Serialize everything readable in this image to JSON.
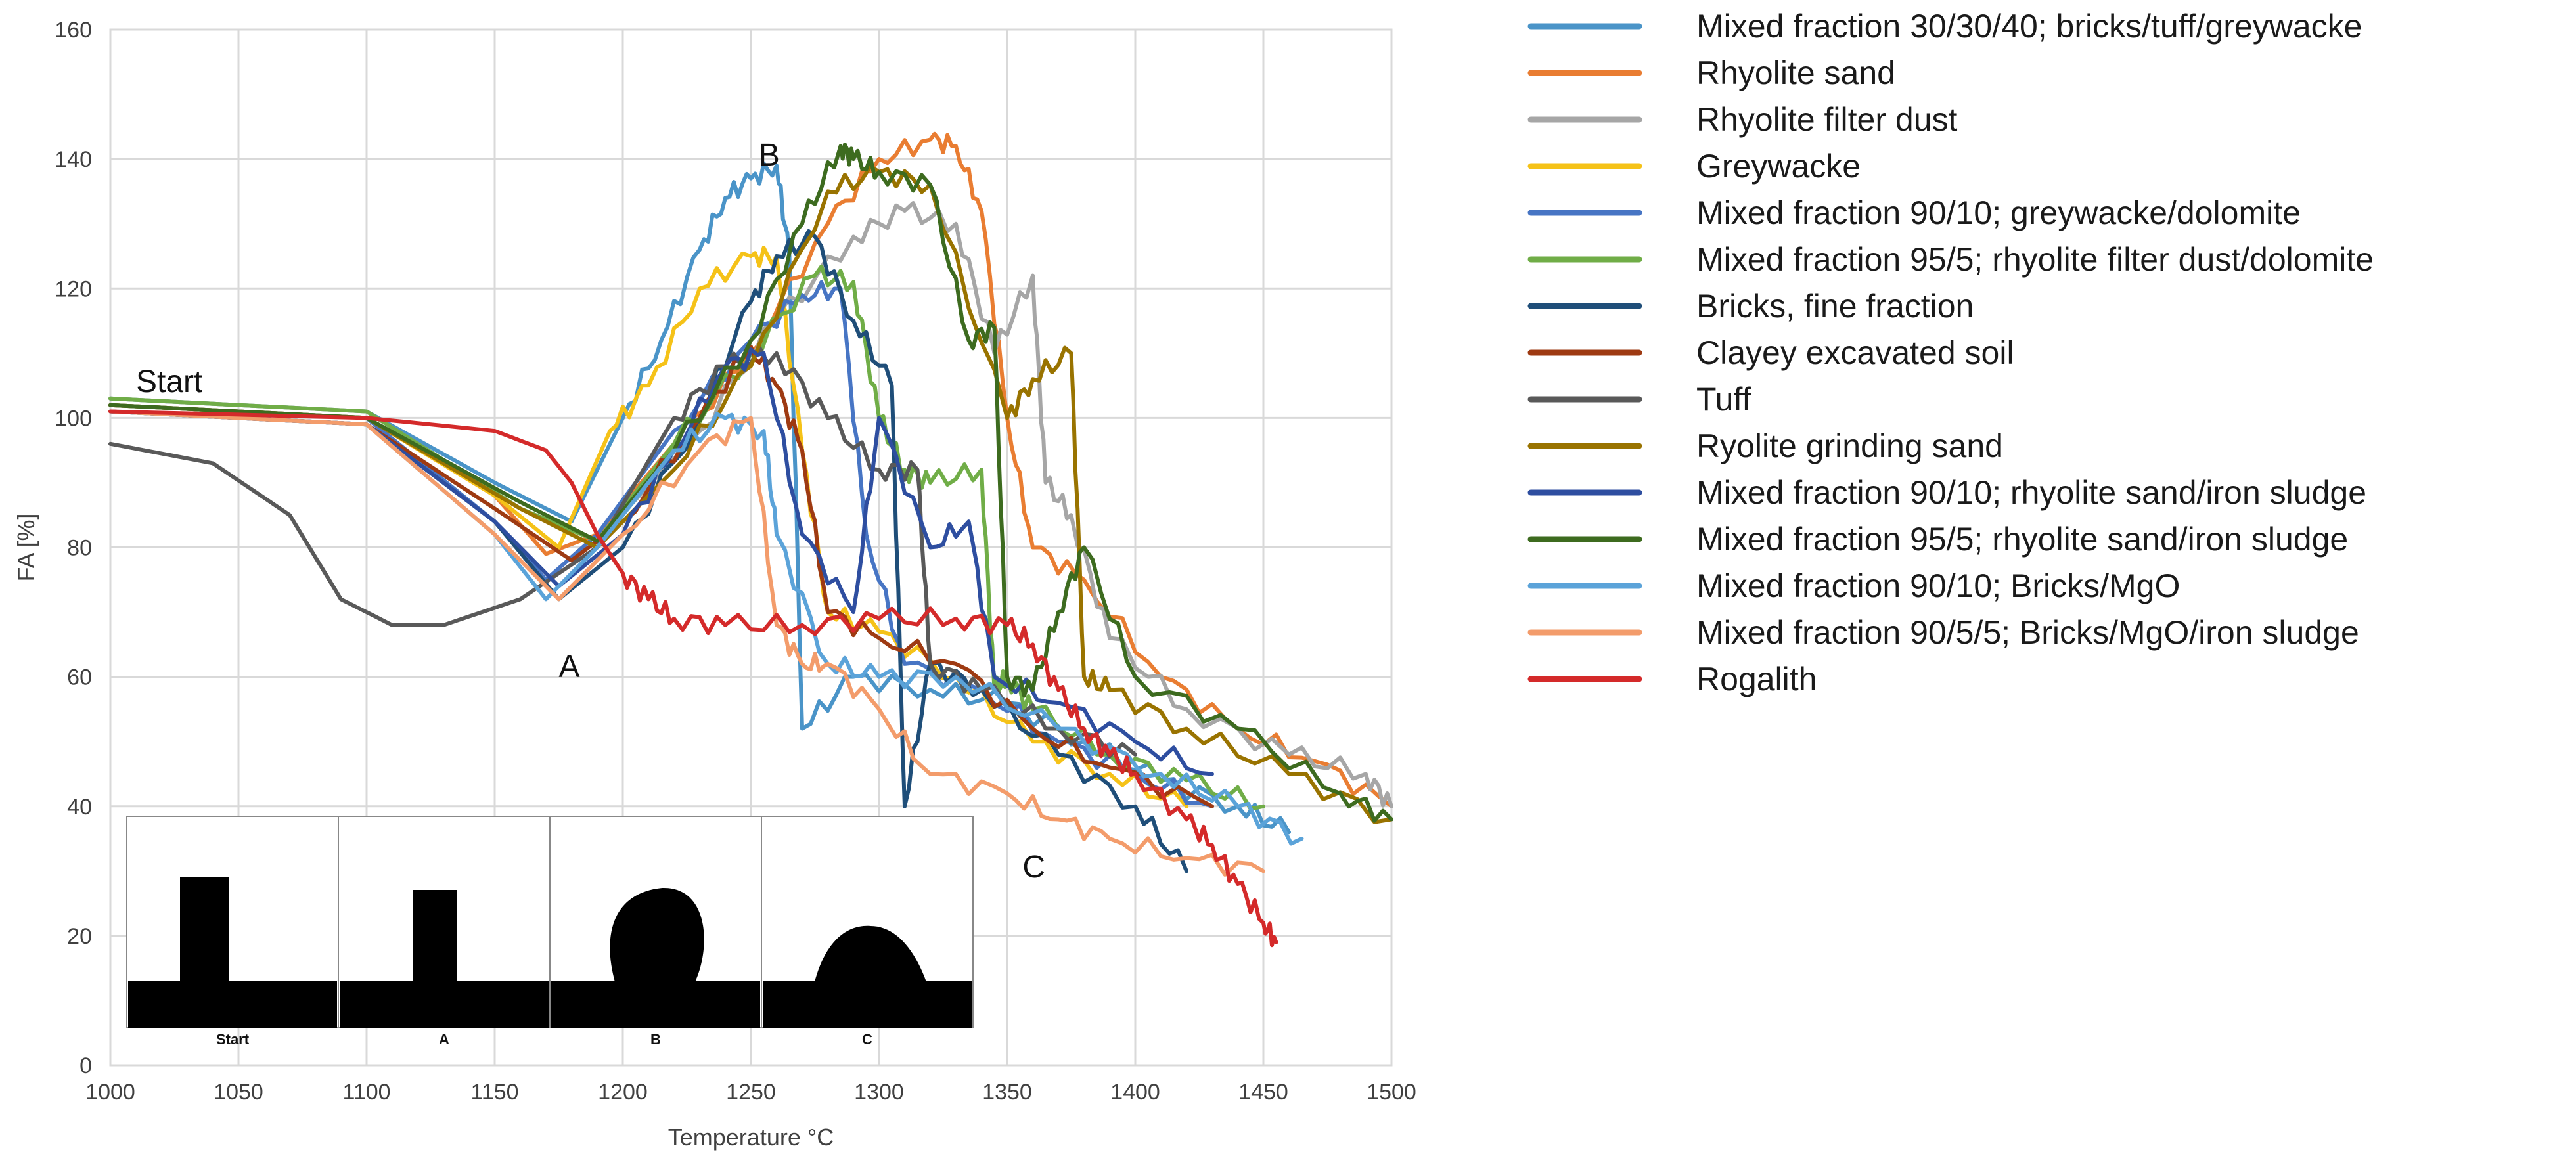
{
  "chart_data": {
    "type": "line",
    "title": "",
    "xlabel": "Temperature °C",
    "ylabel": "FA [%]",
    "xlim": [
      1000,
      1500
    ],
    "ylim": [
      0,
      160
    ],
    "xticks": [
      1000,
      1050,
      1100,
      1150,
      1200,
      1250,
      1300,
      1350,
      1400,
      1450,
      1500
    ],
    "yticks": [
      0,
      20,
      40,
      60,
      80,
      100,
      120,
      140,
      160
    ],
    "grid": true,
    "legend_position": "right",
    "annotations": [
      {
        "text": "Start",
        "x": 1010,
        "y": 104
      },
      {
        "text": "A",
        "x": 1175,
        "y": 60
      },
      {
        "text": "B",
        "x": 1253,
        "y": 139
      },
      {
        "text": "C",
        "x": 1356,
        "y": 29
      }
    ],
    "inset": {
      "labels": [
        "Start",
        "A",
        "B",
        "C"
      ]
    },
    "series": [
      {
        "name": "Mixed fraction 30/30/40; bricks/tuff/greywacke",
        "color": "#4a94c8",
        "x": [
          1000,
          1100,
          1150,
          1180,
          1200,
          1215,
          1230,
          1240,
          1250,
          1260,
          1265,
          1270,
          1290,
          1320,
          1350,
          1380,
          1410,
          1440,
          1460
        ],
        "y": [
          103,
          101,
          90,
          84,
          100,
          112,
          126,
          134,
          137,
          139,
          125,
          52,
          60,
          58,
          56,
          50,
          44,
          40,
          36
        ]
      },
      {
        "name": "Rhyolite sand",
        "color": "#e97d32",
        "x": [
          1000,
          1100,
          1150,
          1170,
          1190,
          1220,
          1250,
          1280,
          1300,
          1320,
          1330,
          1340,
          1350,
          1360,
          1380,
          1410,
          1440,
          1470,
          1500
        ],
        "y": [
          102,
          100,
          88,
          79,
          82,
          96,
          110,
          130,
          140,
          143,
          142,
          132,
          100,
          80,
          75,
          60,
          52,
          47,
          40
        ]
      },
      {
        "name": "Rhyolite filter dust",
        "color": "#a6a6a6",
        "x": [
          1000,
          1100,
          1160,
          1190,
          1230,
          1260,
          1290,
          1310,
          1330,
          1345,
          1360,
          1365,
          1375,
          1390,
          1420,
          1460,
          1490,
          1500
        ],
        "y": [
          103,
          101,
          86,
          81,
          98,
          115,
          128,
          132,
          130,
          110,
          122,
          90,
          85,
          66,
          55,
          48,
          45,
          40
        ]
      },
      {
        "name": "Greywacke",
        "color": "#f5c218",
        "x": [
          1000,
          1100,
          1150,
          1175,
          1195,
          1210,
          1230,
          1250,
          1260,
          1270,
          1280,
          1300,
          1330,
          1360,
          1390,
          1420
        ],
        "y": [
          102,
          100,
          88,
          80,
          98,
          105,
          120,
          125,
          125,
          95,
          70,
          67,
          60,
          50,
          45,
          40
        ]
      },
      {
        "name": "Mixed fraction 90/10; greywacke/dolomite",
        "color": "#4775c4",
        "x": [
          1000,
          1100,
          1150,
          1170,
          1190,
          1220,
          1250,
          1270,
          1285,
          1295,
          1310,
          1340,
          1370,
          1400,
          1430
        ],
        "y": [
          102,
          100,
          84,
          75,
          82,
          98,
          112,
          119,
          120,
          82,
          62,
          58,
          50,
          45,
          40
        ]
      },
      {
        "name": "Mixed fraction 95/5; rhyolite filter dust/dolomite",
        "color": "#70ad47",
        "x": [
          1000,
          1100,
          1160,
          1190,
          1220,
          1250,
          1275,
          1290,
          1300,
          1310,
          1320,
          1340,
          1345,
          1350,
          1360,
          1390,
          1420,
          1450
        ],
        "y": [
          103,
          101,
          86,
          81,
          96,
          110,
          122,
          121,
          100,
          92,
          90,
          92,
          58,
          60,
          55,
          48,
          44,
          40
        ]
      },
      {
        "name": "Bricks, fine fraction",
        "color": "#1f4e79",
        "x": [
          1000,
          1100,
          1150,
          1175,
          1200,
          1230,
          1250,
          1260,
          1275,
          1290,
          1305,
          1310,
          1320,
          1340,
          1370,
          1400,
          1420
        ],
        "y": [
          101,
          99,
          84,
          72,
          80,
          100,
          118,
          125,
          128,
          115,
          105,
          40,
          62,
          58,
          48,
          40,
          30
        ]
      },
      {
        "name": "Clayey excavated soil",
        "color": "#9e3a12",
        "x": [
          1000,
          1100,
          1150,
          1180,
          1200,
          1230,
          1250,
          1260,
          1270,
          1280,
          1300,
          1330,
          1360,
          1390,
          1430
        ],
        "y": [
          101,
          99,
          86,
          78,
          84,
          100,
          111,
          105,
          95,
          70,
          66,
          62,
          52,
          46,
          40
        ]
      },
      {
        "name": "Tuff",
        "color": "#595959",
        "x": [
          1000,
          1040,
          1070,
          1090,
          1110,
          1130,
          1160,
          1190,
          1220,
          1240,
          1260,
          1280,
          1300,
          1315,
          1320,
          1340,
          1370,
          1400
        ],
        "y": [
          96,
          93,
          85,
          72,
          68,
          68,
          72,
          80,
          100,
          108,
          110,
          100,
          92,
          92,
          62,
          58,
          52,
          48
        ]
      },
      {
        "name": "Ryolite grinding sand",
        "color": "#997300",
        "x": [
          1000,
          1100,
          1160,
          1190,
          1220,
          1250,
          1280,
          1300,
          1320,
          1350,
          1360,
          1375,
          1380,
          1390,
          1420,
          1460,
          1500
        ],
        "y": [
          102,
          100,
          86,
          80,
          92,
          108,
          135,
          138,
          136,
          100,
          106,
          110,
          60,
          58,
          52,
          45,
          38
        ]
      },
      {
        "name": "Mixed fraction 90/10; rhyolite sand/iron sludge",
        "color": "#2e4ea0",
        "x": [
          1000,
          1100,
          1150,
          1175,
          1200,
          1220,
          1240,
          1255,
          1270,
          1290,
          1300,
          1320,
          1335,
          1345,
          1370,
          1400,
          1430
        ],
        "y": [
          101,
          99,
          84,
          74,
          82,
          95,
          108,
          110,
          82,
          70,
          100,
          80,
          84,
          60,
          56,
          50,
          45
        ]
      },
      {
        "name": "Mixed fraction 95/5; rhyolite sand/iron sludge",
        "color": "#3d6b1f",
        "x": [
          1000,
          1100,
          1160,
          1190,
          1220,
          1250,
          1270,
          1285,
          1290,
          1300,
          1320,
          1335,
          1345,
          1350,
          1360,
          1370,
          1380,
          1400,
          1440,
          1480,
          1500
        ],
        "y": [
          102,
          100,
          87,
          81,
          95,
          112,
          130,
          142,
          140,
          138,
          136,
          112,
          114,
          60,
          58,
          70,
          80,
          60,
          52,
          42,
          38
        ]
      },
      {
        "name": "Mixed fraction 90/10; Bricks/MgO",
        "color": "#5ba3d9",
        "x": [
          1000,
          1100,
          1150,
          1170,
          1190,
          1220,
          1240,
          1255,
          1260,
          1280,
          1300,
          1330,
          1370,
          1410,
          1440,
          1465
        ],
        "y": [
          101,
          99,
          82,
          72,
          80,
          95,
          100,
          98,
          82,
          62,
          60,
          60,
          52,
          45,
          40,
          35
        ]
      },
      {
        "name": "Mixed fraction 90/5/5; Bricks/MgO/iron sludge",
        "color": "#f39c6b",
        "x": [
          1000,
          1100,
          1150,
          1175,
          1200,
          1230,
          1250,
          1260,
          1270,
          1280,
          1300,
          1320,
          1350,
          1370,
          1390,
          1420,
          1450
        ],
        "y": [
          101,
          99,
          82,
          72,
          82,
          95,
          100,
          68,
          62,
          62,
          55,
          45,
          42,
          38,
          35,
          32,
          30
        ]
      },
      {
        "name": "Rogalith",
        "color": "#d42a2a",
        "x": [
          1000,
          1100,
          1150,
          1170,
          1180,
          1190,
          1200,
          1210,
          1220,
          1240,
          1270,
          1300,
          1330,
          1350,
          1360,
          1370,
          1380,
          1390,
          1400,
          1420,
          1430,
          1440,
          1450,
          1455
        ],
        "y": [
          101,
          100,
          98,
          95,
          90,
          82,
          76,
          72,
          69,
          68,
          68,
          69,
          69,
          68,
          65,
          58,
          52,
          48,
          45,
          38,
          34,
          28,
          22,
          19
        ]
      }
    ]
  }
}
